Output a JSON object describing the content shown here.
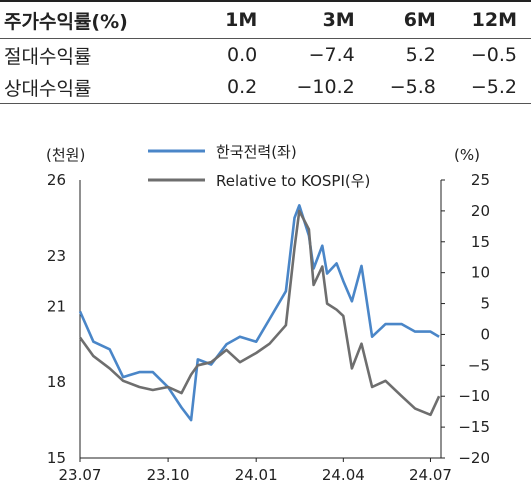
{
  "returns_table": {
    "header": [
      "주가수익률(%)",
      "1M",
      "3M",
      "6M",
      "12M"
    ],
    "rows": [
      {
        "label": "절대수익률",
        "values": [
          "0.0",
          "−7.4",
          "5.2",
          "−0.5"
        ]
      },
      {
        "label": "상대수익률",
        "values": [
          "0.2",
          "−10.2",
          "−5.8",
          "−5.2"
        ]
      }
    ]
  },
  "chart_data": {
    "type": "line",
    "x_tick_labels": [
      "23.07",
      "23.10",
      "24.01",
      "24.04",
      "24.07"
    ],
    "x_ticks": [
      "2023-07",
      "2023-10",
      "2024-01",
      "2024-04",
      "2024-07"
    ],
    "y_left": {
      "unit": "(천원)",
      "ticks": [
        15,
        18,
        21,
        23,
        26
      ],
      "range": [
        15,
        26
      ]
    },
    "y_right": {
      "unit": "(%)",
      "ticks": [
        -20,
        -15,
        -10,
        -5,
        0,
        5,
        10,
        15,
        20,
        25
      ],
      "range": [
        -20,
        25
      ]
    },
    "legend": [
      "한국전력(좌)",
      "Relative to KOSPI(우)"
    ],
    "series": [
      {
        "name": "한국전력(좌)",
        "axis": "left",
        "color": "#4a86c8",
        "x": [
          "2023-07",
          "2023-07-15",
          "2023-08",
          "2023-08-15",
          "2023-09",
          "2023-09-15",
          "2023-10",
          "2023-10-15",
          "2023-10-25",
          "2023-11",
          "2023-11-15",
          "2023-12",
          "2023-12-15",
          "2024-01",
          "2024-01-15",
          "2024-02",
          "2024-02-10",
          "2024-02-15",
          "2024-02-25",
          "2024-03",
          "2024-03-10",
          "2024-03-15",
          "2024-03-25",
          "2024-04",
          "2024-04-10",
          "2024-04-20",
          "2024-05",
          "2024-05-15",
          "2024-06",
          "2024-06-15",
          "2024-07",
          "2024-07-10"
        ],
        "values": [
          20.8,
          19.6,
          19.3,
          18.2,
          18.4,
          18.4,
          17.8,
          17.0,
          16.5,
          18.9,
          18.7,
          19.5,
          19.8,
          19.6,
          20.5,
          21.6,
          24.5,
          25.0,
          23.8,
          22.5,
          23.4,
          22.3,
          22.7,
          22.0,
          21.2,
          22.6,
          19.8,
          20.3,
          20.3,
          20.0,
          20.0,
          19.8
        ]
      },
      {
        "name": "Relative to KOSPI(우)",
        "axis": "right",
        "color": "#6e6e6e",
        "x": [
          "2023-07",
          "2023-07-15",
          "2023-08",
          "2023-08-15",
          "2023-09",
          "2023-09-15",
          "2023-10",
          "2023-10-15",
          "2023-10-25",
          "2023-11",
          "2023-11-15",
          "2023-12",
          "2023-12-15",
          "2024-01",
          "2024-01-15",
          "2024-02",
          "2024-02-10",
          "2024-02-15",
          "2024-02-25",
          "2024-03",
          "2024-03-10",
          "2024-03-15",
          "2024-03-25",
          "2024-04",
          "2024-04-10",
          "2024-04-20",
          "2024-05",
          "2024-05-15",
          "2024-06",
          "2024-06-15",
          "2024-07",
          "2024-07-10"
        ],
        "values": [
          -0.5,
          -3.5,
          -5.5,
          -7.5,
          -8.5,
          -9.0,
          -8.5,
          -9.5,
          -6.5,
          -5.0,
          -4.5,
          -2.5,
          -4.5,
          -3.0,
          -1.5,
          1.5,
          14.0,
          20.0,
          17.0,
          8.0,
          11.0,
          5.0,
          4.0,
          3.0,
          -5.5,
          -1.5,
          -8.5,
          -7.5,
          -10.0,
          -12.0,
          -13.0,
          -10.0
        ]
      }
    ]
  }
}
